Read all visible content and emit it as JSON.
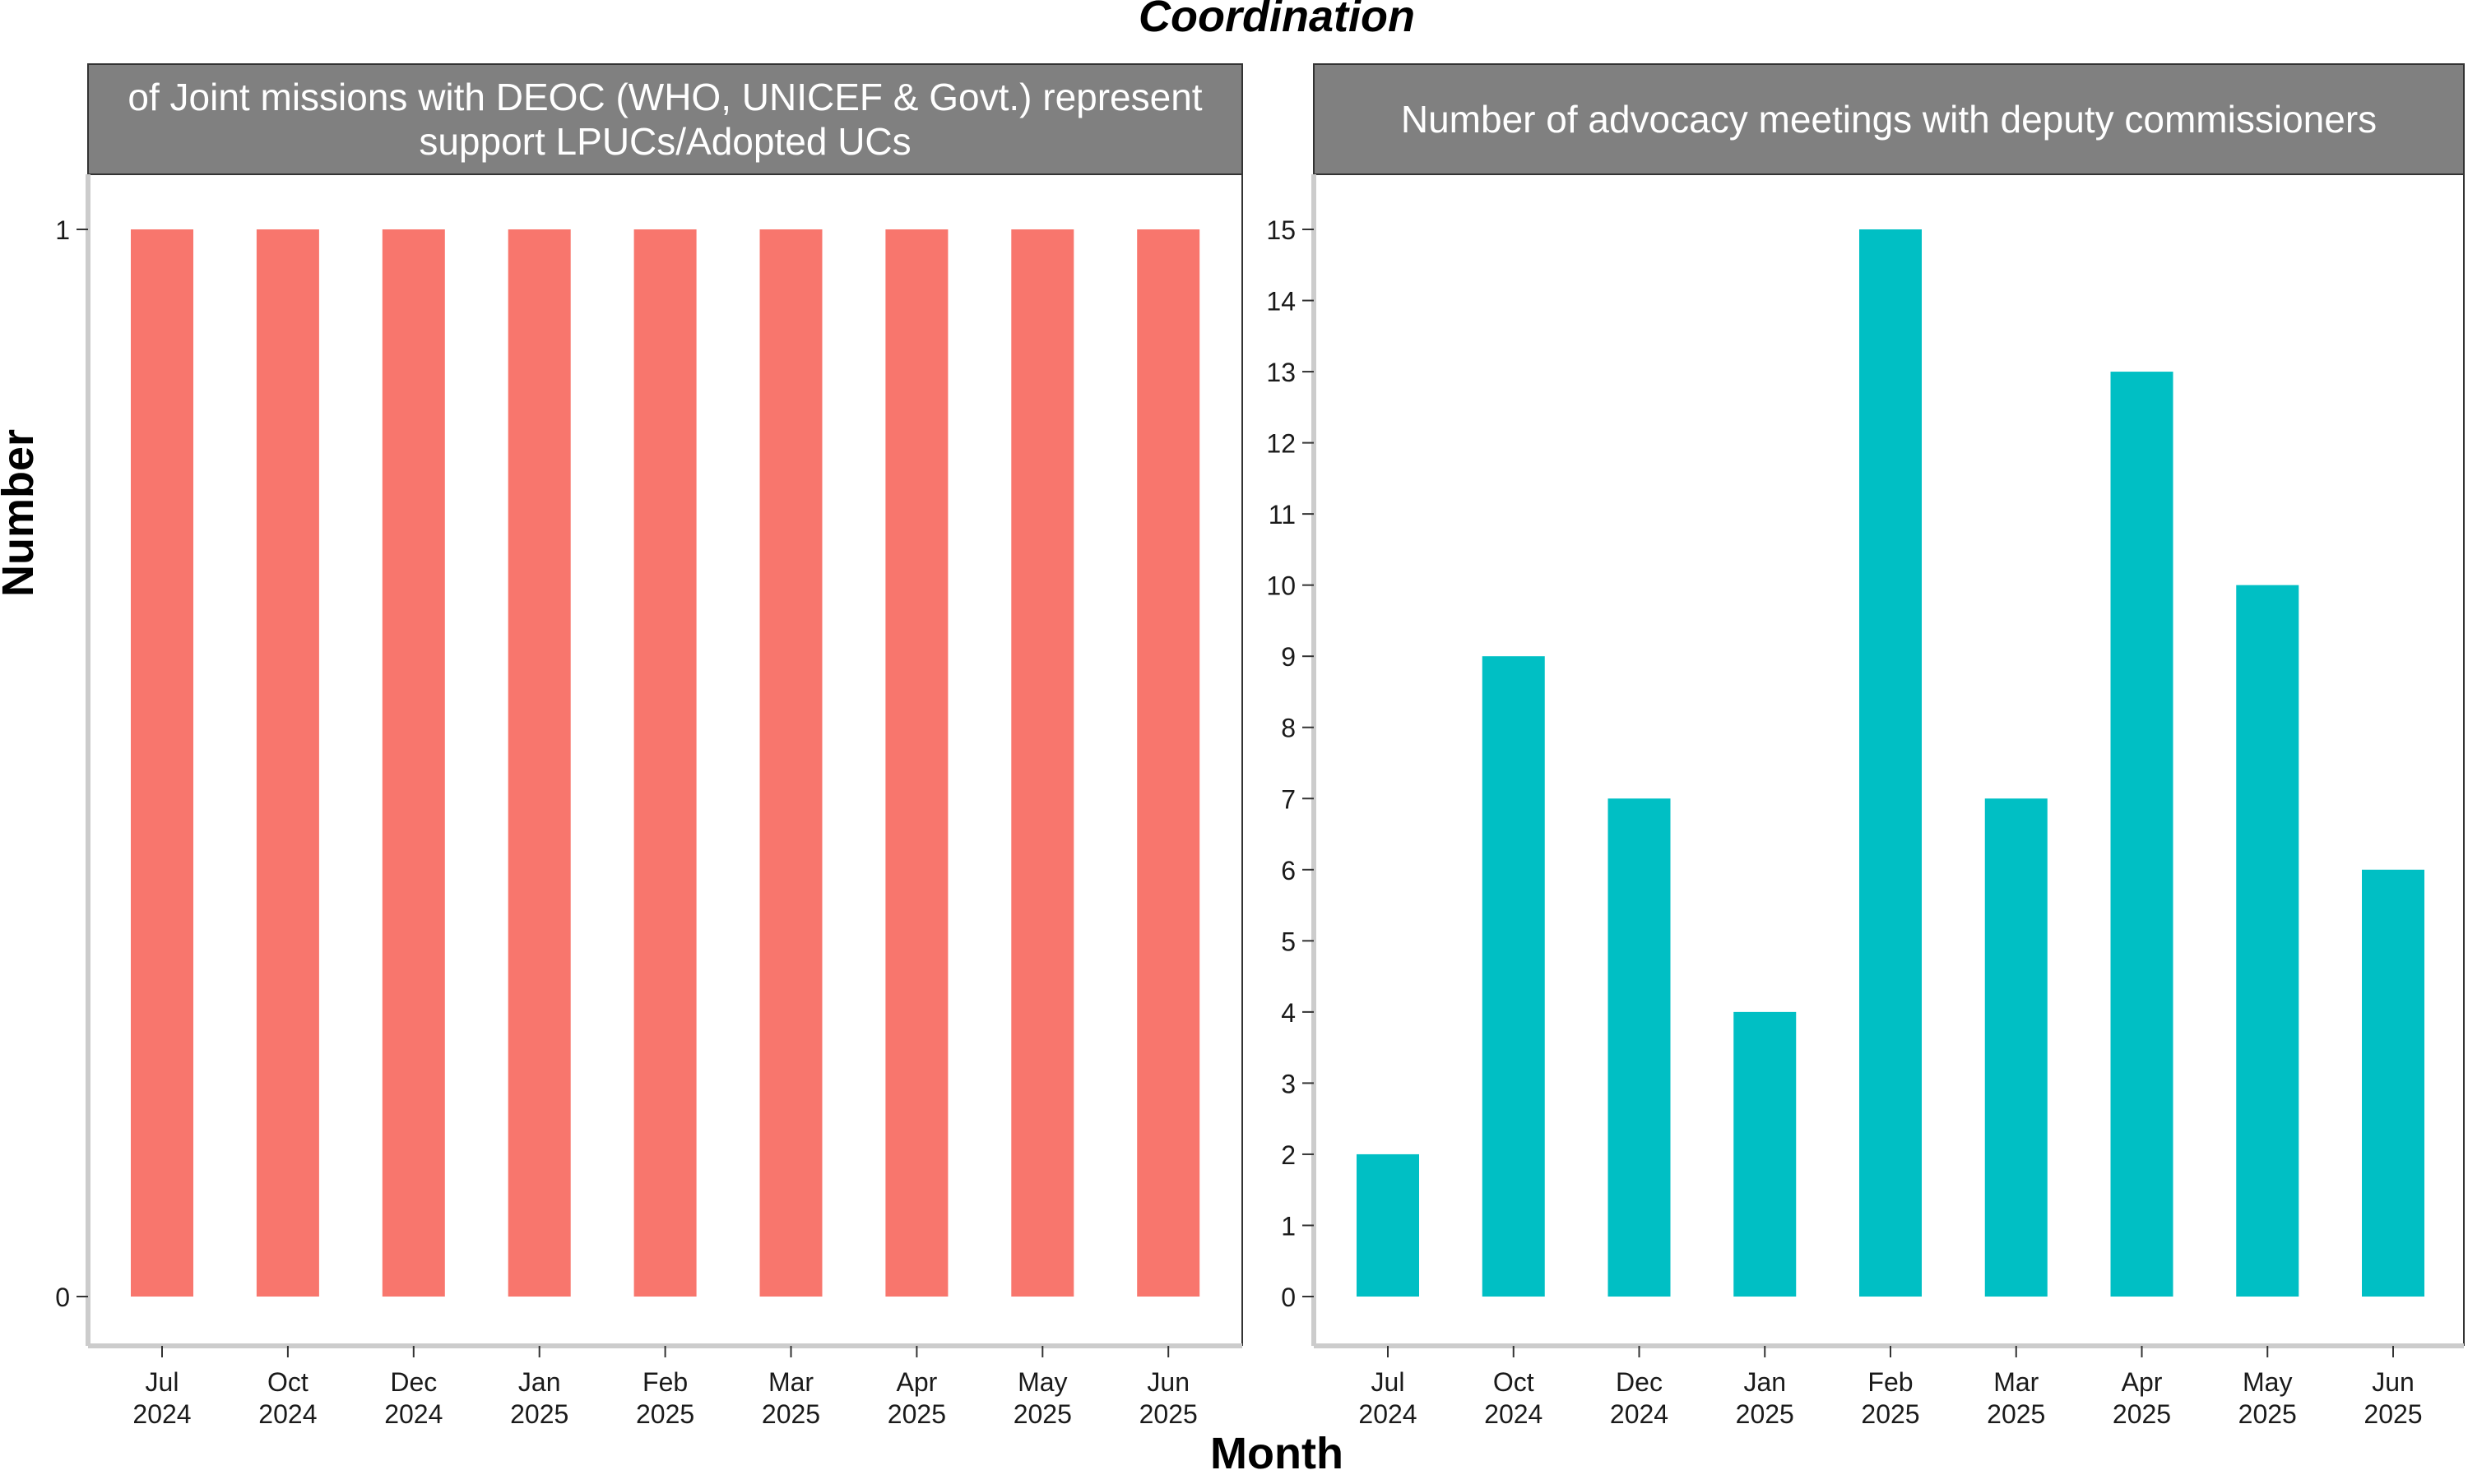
{
  "figure": {
    "title": "Coordination",
    "xlabel": "Month",
    "ylabel": "Number"
  },
  "colors": {
    "panel1_bar": "#F8766D",
    "panel2_bar": "#00BFC4",
    "strip_bg": "#808080",
    "strip_text": "#ffffff",
    "axis_line": "#cccccc",
    "text": "#000000"
  },
  "chart_data": [
    {
      "type": "bar",
      "panel_title": "of Joint missions with DEOC (WHO, UNICEF & Govt.) represent\nsupport LPUCs/Adopted UCs",
      "panel_title_lines": [
        "of Joint missions with DEOC (WHO, UNICEF & Govt.) represent",
        "support LPUCs/Adopted UCs"
      ],
      "categories": [
        [
          "Jul",
          "2024"
        ],
        [
          "Oct",
          "2024"
        ],
        [
          "Dec",
          "2024"
        ],
        [
          "Jan",
          "2025"
        ],
        [
          "Feb",
          "2025"
        ],
        [
          "Mar",
          "2025"
        ],
        [
          "Apr",
          "2025"
        ],
        [
          "May",
          "2025"
        ],
        [
          "Jun",
          "2025"
        ]
      ],
      "values": [
        1,
        1,
        1,
        1,
        1,
        1,
        1,
        1,
        1
      ],
      "ylim": [
        0,
        1
      ],
      "yticks": [
        0,
        1
      ],
      "grid": false
    },
    {
      "type": "bar",
      "panel_title": "Number of advocacy meetings with deputy commissioners",
      "panel_title_lines": [
        "Number of advocacy meetings with deputy commissioners"
      ],
      "categories": [
        [
          "Jul",
          "2024"
        ],
        [
          "Oct",
          "2024"
        ],
        [
          "Dec",
          "2024"
        ],
        [
          "Jan",
          "2025"
        ],
        [
          "Feb",
          "2025"
        ],
        [
          "Mar",
          "2025"
        ],
        [
          "Apr",
          "2025"
        ],
        [
          "May",
          "2025"
        ],
        [
          "Jun",
          "2025"
        ]
      ],
      "values": [
        2,
        9,
        7,
        4,
        15,
        7,
        13,
        10,
        6
      ],
      "ylim": [
        0,
        15
      ],
      "yticks": [
        0,
        1,
        2,
        3,
        4,
        5,
        6,
        7,
        8,
        9,
        10,
        11,
        12,
        13,
        14,
        15
      ],
      "grid": false
    }
  ]
}
